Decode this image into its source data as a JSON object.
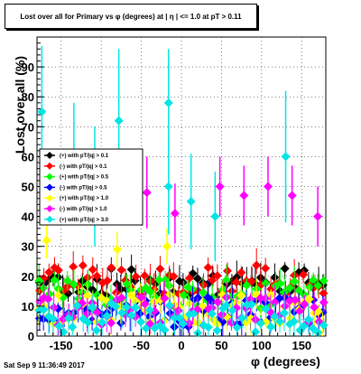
{
  "chart_data": {
    "type": "scatter",
    "title": "Lost over all for Primary vs φ (degrees) at | η | <= 1.0 at pT > 0.11",
    "xlabel": "φ (degrees)",
    "ylabel": "Lost over all (%)",
    "xlim": [
      -180,
      180
    ],
    "ylim": [
      0,
      100
    ],
    "x_ticks": [
      -150,
      -100,
      -50,
      0,
      50,
      100,
      150
    ],
    "y_ticks": [
      0,
      10,
      20,
      30,
      40,
      50,
      60,
      70,
      80,
      90
    ],
    "grid": true,
    "legend_position": "left-middle",
    "series": [
      {
        "name": "(+) with pT/|q| > 0.1",
        "color": "#000000",
        "marker": "diamond"
      },
      {
        "name": "(-) with pT/|q| > 0.1",
        "color": "#ff0000",
        "marker": "diamond"
      },
      {
        "name": "(+) with pT/|q| > 0.5",
        "color": "#00ff00",
        "marker": "diamond"
      },
      {
        "name": "(-) with pT/|q| > 0.5",
        "color": "#0000ff",
        "marker": "diamond"
      },
      {
        "name": "(+) with pT/|q| > 1.0",
        "color": "#ffff00",
        "marker": "diamond"
      },
      {
        "name": "(-) with pT/|q| > 1.0",
        "color": "#ff00ff",
        "marker": "diamond"
      },
      {
        "name": "(+) with pT/|q| > 3.0",
        "color": "#00e5e5",
        "marker": "diamond"
      }
    ],
    "highlight_points": [
      {
        "series": 6,
        "x": -174,
        "y": 75,
        "err": 22
      },
      {
        "series": 6,
        "x": -134,
        "y": 60,
        "err": 18
      },
      {
        "series": 6,
        "x": -108,
        "y": 50,
        "err": 20
      },
      {
        "series": 6,
        "x": -78,
        "y": 72,
        "err": 24
      },
      {
        "series": 6,
        "x": -16,
        "y": 78,
        "err": 18
      },
      {
        "series": 6,
        "x": -16,
        "y": 50,
        "err": 16
      },
      {
        "series": 6,
        "x": 12,
        "y": 45,
        "err": 16
      },
      {
        "series": 6,
        "x": 42,
        "y": 40,
        "err": 15
      },
      {
        "series": 6,
        "x": 130,
        "y": 60,
        "err": 22
      },
      {
        "series": 5,
        "x": -43,
        "y": 48,
        "err": 12
      },
      {
        "series": 5,
        "x": -8,
        "y": 41,
        "err": 10
      },
      {
        "series": 5,
        "x": 48,
        "y": 50,
        "err": 10
      },
      {
        "series": 5,
        "x": 78,
        "y": 47,
        "err": 10
      },
      {
        "series": 5,
        "x": 108,
        "y": 50,
        "err": 10
      },
      {
        "series": 5,
        "x": 138,
        "y": 47,
        "err": 10
      },
      {
        "series": 5,
        "x": 170,
        "y": 40,
        "err": 10
      },
      {
        "series": 4,
        "x": -168,
        "y": 32,
        "err": 6
      },
      {
        "series": 4,
        "x": -80,
        "y": 29,
        "err": 6
      },
      {
        "series": 4,
        "x": -18,
        "y": 30,
        "err": 6
      }
    ]
  },
  "footer": "Sat Sep  9 11:36:49 2017"
}
